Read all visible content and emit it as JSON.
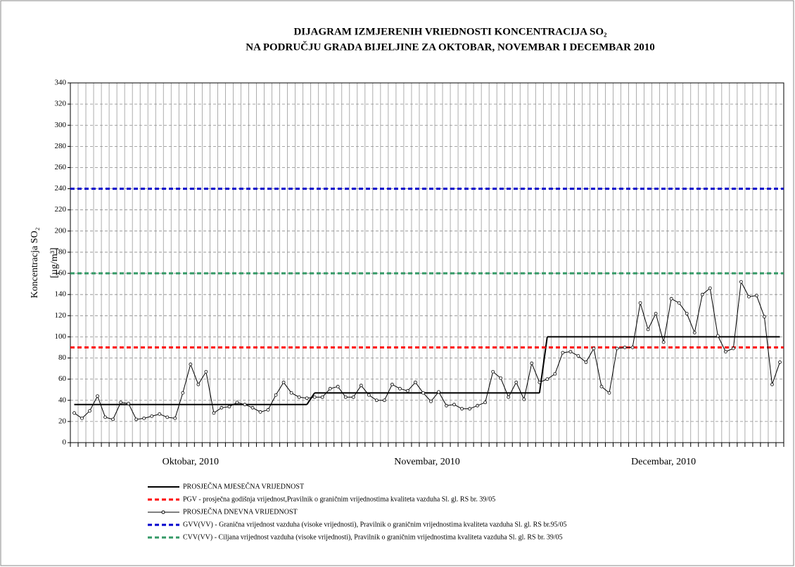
{
  "chart_data": {
    "type": "line",
    "title": [
      "DIJAGRAM IZMJERENIH VRIEDNOSTI KONCENTRACIJA  SO₂",
      "NA PODRUČJU GRADA BIJELJINE ZA OKTOBAR, NOVEMBAR I DECEMBAR 2010"
    ],
    "y_label": [
      "Koncentracja SO₂",
      "[µg/m³]"
    ],
    "ylim": [
      0,
      340
    ],
    "yticks": [
      0,
      20,
      40,
      60,
      80,
      100,
      120,
      140,
      160,
      180,
      200,
      220,
      240,
      260,
      280,
      300,
      320,
      340
    ],
    "grid": true,
    "months": [
      {
        "label": "Oktobar, 2010",
        "days": 31
      },
      {
        "label": "Novembar, 2010",
        "days": 30
      },
      {
        "label": "Decembar, 2010",
        "days": 31
      }
    ],
    "series": [
      {
        "name": "PROSJEČNA MJESEČNA VRIJEDNOST",
        "kind": "monthly",
        "color": "#000000",
        "values": [
          36,
          47,
          100
        ]
      },
      {
        "name": "PGV - prosječna godišnja vrijednost,Pravilnik o graničnim vrijednostima kvaliteta vazduha Sl. gl. RS br. 39/05",
        "kind": "reference",
        "color": "#ff0000",
        "value": 90
      },
      {
        "name": "PROSJEČNA DNEVNA VRIJEDNOST",
        "kind": "daily",
        "color": "#000000",
        "values": [
          28,
          23,
          30,
          44,
          24,
          22,
          38,
          37,
          22,
          23,
          25,
          27,
          24,
          23,
          47,
          74,
          55,
          67,
          28,
          33,
          34,
          38,
          36,
          33,
          29,
          31,
          45,
          57,
          47,
          43,
          42,
          43,
          43,
          51,
          53,
          43,
          43,
          54,
          45,
          40,
          40,
          55,
          51,
          49,
          57,
          47,
          39,
          48,
          35,
          36,
          32,
          32,
          35,
          38,
          67,
          61,
          43,
          57,
          41,
          75,
          57,
          60,
          65,
          85,
          86,
          82,
          76,
          89,
          53,
          47,
          89,
          90,
          90,
          132,
          107,
          122,
          95,
          136,
          132,
          122,
          104,
          140,
          146,
          101,
          86,
          89,
          152,
          138,
          139,
          119,
          55,
          76
        ]
      },
      {
        "name": "GVV(VV) - Granična vrijednost vazduha (visoke vrijednosti), Pravilnik o graničnim vrijednostima kvaliteta vazduha Sl. gl. RS br.95/05",
        "kind": "reference",
        "color": "#0000cc",
        "value": 240
      },
      {
        "name": "CVV(VV) - Ciljana vrijednost vazduha (visoke vrijednosti), Pravilnik o graničnim vrijednostima kvaliteta vazduha Sl. gl. RS br. 39/05",
        "kind": "reference",
        "color": "#339966",
        "value": 160
      }
    ]
  }
}
